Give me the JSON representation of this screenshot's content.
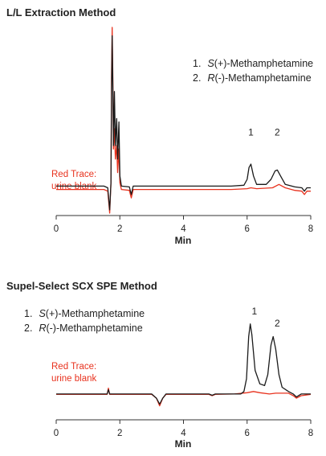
{
  "chart_data": [
    {
      "type": "line",
      "title": "L/L Extraction Method",
      "xlabel": "Min",
      "ylabel": "",
      "xlim": [
        0,
        8
      ],
      "x_ticks": [
        0,
        2,
        4,
        6,
        8
      ],
      "grid": false,
      "legend_position": "top-right",
      "legend": [
        {
          "num": "1.",
          "italic": "S",
          "rest": "(+)-Methamphetamine"
        },
        {
          "num": "2.",
          "italic": "R",
          "rest": "(-)-Methamphetamine"
        }
      ],
      "note_lines": [
        "Red Trace:",
        "urine blank"
      ],
      "peak_labels": [
        {
          "text": "1",
          "x": 6.12,
          "y": 0.36
        },
        {
          "text": "2",
          "x": 6.95,
          "y": 0.36
        }
      ],
      "series": [
        {
          "color": "#1a1a1a",
          "points": [
            [
              0,
              0.06
            ],
            [
              1.5,
              0.06
            ],
            [
              1.62,
              0.05
            ],
            [
              1.68,
              -0.08
            ],
            [
              1.72,
              0.08
            ],
            [
              1.74,
              0.62
            ],
            [
              1.76,
              0.95
            ],
            [
              1.78,
              0.66
            ],
            [
              1.8,
              0.3
            ],
            [
              1.83,
              0.62
            ],
            [
              1.86,
              0.3
            ],
            [
              1.9,
              0.46
            ],
            [
              1.93,
              0.22
            ],
            [
              1.97,
              0.44
            ],
            [
              2.0,
              0.12
            ],
            [
              2.05,
              0.06
            ],
            [
              2.3,
              0.055
            ],
            [
              2.36,
              0.01
            ],
            [
              2.42,
              0.06
            ],
            [
              3.5,
              0.06
            ],
            [
              5.5,
              0.06
            ],
            [
              5.9,
              0.065
            ],
            [
              6.0,
              0.1
            ],
            [
              6.06,
              0.17
            ],
            [
              6.12,
              0.19
            ],
            [
              6.2,
              0.12
            ],
            [
              6.3,
              0.07
            ],
            [
              6.6,
              0.07
            ],
            [
              6.75,
              0.1
            ],
            [
              6.88,
              0.15
            ],
            [
              6.95,
              0.155
            ],
            [
              7.05,
              0.12
            ],
            [
              7.2,
              0.07
            ],
            [
              7.5,
              0.055
            ],
            [
              7.72,
              0.05
            ],
            [
              7.8,
              0.03
            ],
            [
              7.88,
              0.05
            ],
            [
              8.0,
              0.05
            ]
          ]
        },
        {
          "color": "#e8321e",
          "points": [
            [
              0,
              0.04
            ],
            [
              1.5,
              0.04
            ],
            [
              1.62,
              0.03
            ],
            [
              1.68,
              -0.1
            ],
            [
              1.72,
              0.08
            ],
            [
              1.74,
              0.72
            ],
            [
              1.76,
              1.0
            ],
            [
              1.78,
              0.72
            ],
            [
              1.8,
              0.28
            ],
            [
              1.83,
              0.4
            ],
            [
              1.86,
              0.22
            ],
            [
              1.9,
              0.3
            ],
            [
              1.93,
              0.14
            ],
            [
              1.97,
              0.28
            ],
            [
              2.0,
              0.08
            ],
            [
              2.05,
              0.04
            ],
            [
              2.3,
              0.035
            ],
            [
              2.36,
              -0.01
            ],
            [
              2.42,
              0.04
            ],
            [
              3.5,
              0.04
            ],
            [
              5.5,
              0.04
            ],
            [
              6.0,
              0.045
            ],
            [
              6.12,
              0.05
            ],
            [
              6.3,
              0.045
            ],
            [
              6.8,
              0.05
            ],
            [
              7.0,
              0.07
            ],
            [
              7.2,
              0.05
            ],
            [
              7.5,
              0.035
            ],
            [
              7.72,
              0.03
            ],
            [
              7.8,
              0.01
            ],
            [
              7.88,
              0.03
            ],
            [
              8.0,
              0.03
            ]
          ]
        }
      ]
    },
    {
      "type": "line",
      "title": "Supel-Select SCX SPE Method",
      "xlabel": "Min",
      "ylabel": "",
      "xlim": [
        0,
        8
      ],
      "x_ticks": [
        0,
        2,
        4,
        6,
        8
      ],
      "grid": false,
      "legend_position": "top-left",
      "legend": [
        {
          "num": "1.",
          "italic": "S",
          "rest": "(+)-Methamphetamine"
        },
        {
          "num": "2.",
          "italic": "R",
          "rest": "(-)-Methamphetamine"
        }
      ],
      "note_lines": [
        "Red Trace:",
        "urine blank"
      ],
      "peak_labels": [
        {
          "text": "1",
          "x": 6.23,
          "y": 0.96
        },
        {
          "text": "2",
          "x": 6.95,
          "y": 0.82
        }
      ],
      "series": [
        {
          "color": "#1a1a1a",
          "points": [
            [
              0,
              0.02
            ],
            [
              1.6,
              0.02
            ],
            [
              1.64,
              0.07
            ],
            [
              1.68,
              0.02
            ],
            [
              3.0,
              0.02
            ],
            [
              3.15,
              -0.03
            ],
            [
              3.25,
              -0.1
            ],
            [
              3.35,
              -0.03
            ],
            [
              3.45,
              0.02
            ],
            [
              4.8,
              0.02
            ],
            [
              4.9,
              0.005
            ],
            [
              5.0,
              0.02
            ],
            [
              5.8,
              0.02
            ],
            [
              5.9,
              0.05
            ],
            [
              5.98,
              0.2
            ],
            [
              6.05,
              0.7
            ],
            [
              6.1,
              0.85
            ],
            [
              6.15,
              0.72
            ],
            [
              6.25,
              0.3
            ],
            [
              6.4,
              0.14
            ],
            [
              6.55,
              0.12
            ],
            [
              6.65,
              0.25
            ],
            [
              6.75,
              0.6
            ],
            [
              6.82,
              0.7
            ],
            [
              6.9,
              0.55
            ],
            [
              7.0,
              0.25
            ],
            [
              7.1,
              0.1
            ],
            [
              7.3,
              0.05
            ],
            [
              7.45,
              0.02
            ],
            [
              7.55,
              -0.015
            ],
            [
              7.7,
              0.02
            ],
            [
              8.0,
              0.02
            ]
          ]
        },
        {
          "color": "#e8321e",
          "points": [
            [
              0,
              0.015
            ],
            [
              1.6,
              0.015
            ],
            [
              1.64,
              0.09
            ],
            [
              1.68,
              0.015
            ],
            [
              3.0,
              0.015
            ],
            [
              3.15,
              -0.03
            ],
            [
              3.25,
              -0.12
            ],
            [
              3.35,
              -0.03
            ],
            [
              3.45,
              0.015
            ],
            [
              4.8,
              0.015
            ],
            [
              4.9,
              0.0
            ],
            [
              5.0,
              0.015
            ],
            [
              5.6,
              0.02
            ],
            [
              6.0,
              0.035
            ],
            [
              6.2,
              0.05
            ],
            [
              6.4,
              0.035
            ],
            [
              6.7,
              0.02
            ],
            [
              6.9,
              0.03
            ],
            [
              7.1,
              0.03
            ],
            [
              7.3,
              0.03
            ],
            [
              7.45,
              0.0
            ],
            [
              7.55,
              -0.03
            ],
            [
              7.7,
              0.0
            ],
            [
              8.0,
              0.015
            ]
          ]
        }
      ]
    }
  ]
}
